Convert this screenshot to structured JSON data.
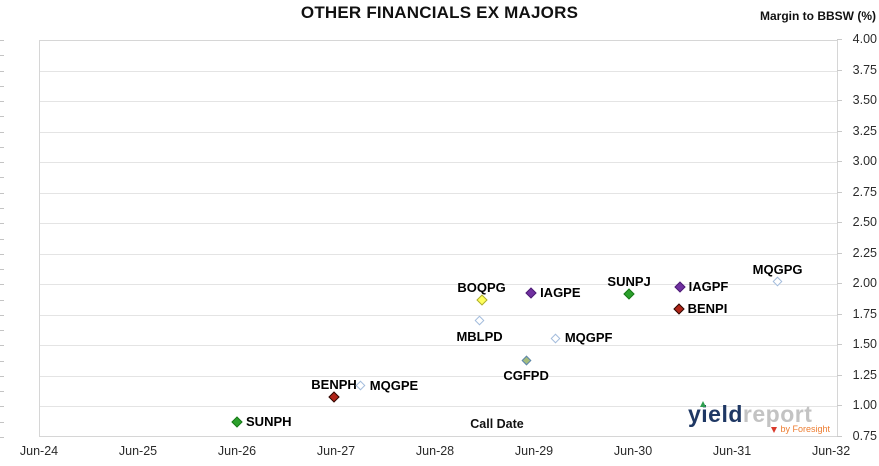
{
  "chart_data": {
    "type": "scatter",
    "title": "OTHER FINANCIALS EX MAJORS",
    "xlabel": "Call Date",
    "ylabel": "Margin to BBSW (%)",
    "xlim": [
      24,
      32.07
    ],
    "ylim": [
      0.75,
      4.0
    ],
    "grid": "horizontal-only",
    "legend_position": "none (labels beside points)",
    "x_ticks": [
      {
        "value": 24,
        "label": "Jun-24"
      },
      {
        "value": 25,
        "label": "Jun-25"
      },
      {
        "value": 26,
        "label": "Jun-26"
      },
      {
        "value": 27,
        "label": "Jun-27"
      },
      {
        "value": 28,
        "label": "Jun-28"
      },
      {
        "value": 29,
        "label": "Jun-29"
      },
      {
        "value": 30,
        "label": "Jun-30"
      },
      {
        "value": 31,
        "label": "Jun-31"
      },
      {
        "value": 32,
        "label": "Jun-32"
      }
    ],
    "y_ticks": [
      {
        "value": 4.0,
        "label": "4.00"
      },
      {
        "value": 3.75,
        "label": "3.75"
      },
      {
        "value": 3.5,
        "label": "3.50"
      },
      {
        "value": 3.25,
        "label": "3.25"
      },
      {
        "value": 3.0,
        "label": "3.00"
      },
      {
        "value": 2.75,
        "label": "2.75"
      },
      {
        "value": 2.5,
        "label": "2.50"
      },
      {
        "value": 2.25,
        "label": "2.25"
      },
      {
        "value": 2.0,
        "label": "2.00"
      },
      {
        "value": 1.75,
        "label": "1.75"
      },
      {
        "value": 1.5,
        "label": "1.50"
      },
      {
        "value": 1.25,
        "label": "1.25"
      },
      {
        "value": 1.0,
        "label": "1.00"
      },
      {
        "value": 0.75,
        "label": "0.75"
      }
    ],
    "points": [
      {
        "label": "SUNPH",
        "x": 26.0,
        "y": 0.87,
        "style": "green",
        "label_pos": "right"
      },
      {
        "label": "BENPH",
        "x": 26.98,
        "y": 1.08,
        "style": "darkred",
        "label_pos": "above"
      },
      {
        "label": "MQGPE",
        "x": 27.25,
        "y": 1.17,
        "style": "open-blue",
        "label_pos": "right"
      },
      {
        "label": "MBLPD",
        "x": 28.45,
        "y": 1.7,
        "style": "open-blue",
        "label_pos": "below"
      },
      {
        "label": "BOQPG",
        "x": 28.47,
        "y": 1.87,
        "style": "yellow",
        "label_pos": "above"
      },
      {
        "label": "CGFPD",
        "x": 28.92,
        "y": 1.38,
        "style": "olive",
        "label_pos": "below"
      },
      {
        "label": "IAGPE",
        "x": 28.97,
        "y": 1.93,
        "style": "purple",
        "label_pos": "right"
      },
      {
        "label": "MQGPF",
        "x": 29.22,
        "y": 1.56,
        "style": "open-blue",
        "label_pos": "right"
      },
      {
        "label": "SUNPJ",
        "x": 29.96,
        "y": 1.92,
        "style": "green",
        "label_pos": "above"
      },
      {
        "label": "BENPI",
        "x": 30.46,
        "y": 1.8,
        "style": "darkred",
        "label_pos": "right"
      },
      {
        "label": "IAGPF",
        "x": 30.47,
        "y": 1.98,
        "style": "purple",
        "label_pos": "right"
      },
      {
        "label": "MQGPG",
        "x": 31.46,
        "y": 2.02,
        "style": "open-blue",
        "label_pos": "above"
      }
    ],
    "marker_styles": {
      "green": {
        "fill": "#2CA02C",
        "border": "#1A7A1A",
        "size": 8
      },
      "darkred": {
        "fill": "#B02418",
        "border": "#2B0B06",
        "size": 8
      },
      "purple": {
        "fill": "#7030A0",
        "border": "#4E1E75",
        "size": 8
      },
      "yellow": {
        "fill": "#FFFF5C",
        "border": "#ADAD2E",
        "size": 8
      },
      "olive": {
        "fill": "#A5BD7C",
        "border": "#5B84B1",
        "size": 7
      },
      "open-blue": {
        "fill": "#FFFFFF",
        "border": "#A3BCDC",
        "size": 7
      }
    }
  },
  "colors": {
    "gridline": "#E4E4E4",
    "plot_border": "#D6D6D6",
    "tick_text": "#2B2B2B",
    "title_text": "#111111"
  },
  "watermark": {
    "brand_primary": "yield",
    "brand_secondary": "report",
    "byline": "by Foresight",
    "navy": "#1F3864",
    "gray": "#C3C3C3",
    "orange": "#ED7D31",
    "red": "#D93A2B",
    "green": "#2E9E4F"
  }
}
